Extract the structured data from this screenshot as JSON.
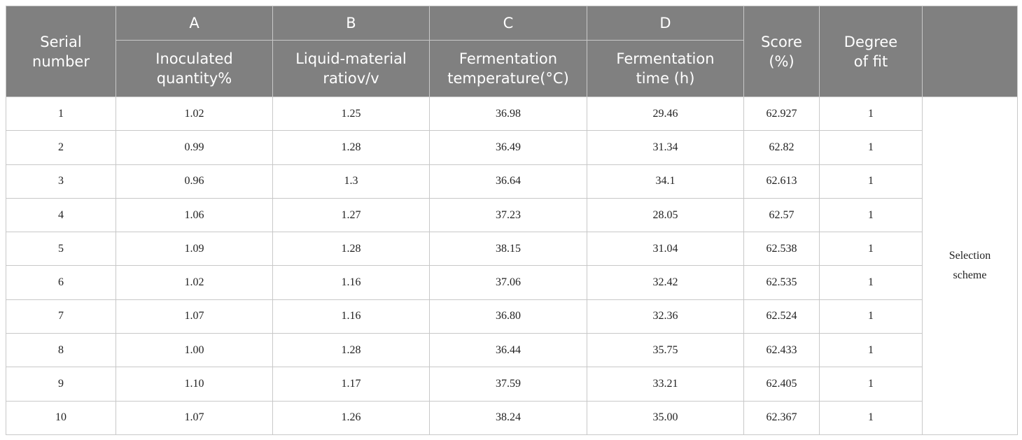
{
  "table": {
    "header": {
      "serial": "Serial number",
      "columns": [
        {
          "letter": "A",
          "name": "Inoculated quantity%"
        },
        {
          "letter": "B",
          "name": "Liquid-material ratiov/v"
        },
        {
          "letter": "C",
          "name": "Fermentation temperature(°C)"
        },
        {
          "letter": "D",
          "name": "Fermentation time (h)"
        }
      ],
      "score": "Score (%)",
      "fit": "Degree of fit"
    },
    "rows": [
      [
        "1",
        "1.02",
        "1.25",
        "36.98",
        "29.46",
        "62.927",
        "1"
      ],
      [
        "2",
        "0.99",
        "1.28",
        "36.49",
        "31.34",
        "62.82",
        "1"
      ],
      [
        "3",
        "0.96",
        "1.3",
        "36.64",
        "34.1",
        "62.613",
        "1"
      ],
      [
        "4",
        "1.06",
        "1.27",
        "37.23",
        "28.05",
        "62.57",
        "1"
      ],
      [
        "5",
        "1.09",
        "1.28",
        "38.15",
        "31.04",
        "62.538",
        "1"
      ],
      [
        "6",
        "1.02",
        "1.16",
        "37.06",
        "32.42",
        "62.535",
        "1"
      ],
      [
        "7",
        "1.07",
        "1.16",
        "36.80",
        "32.36",
        "62.524",
        "1"
      ],
      [
        "8",
        "1.00",
        "1.28",
        "36.44",
        "35.75",
        "62.433",
        "1"
      ],
      [
        "9",
        "1.10",
        "1.17",
        "37.59",
        "33.21",
        "62.405",
        "1"
      ],
      [
        "10",
        "1.07",
        "1.26",
        "38.24",
        "35.00",
        "62.367",
        "1"
      ]
    ],
    "note": "Selection scheme"
  }
}
